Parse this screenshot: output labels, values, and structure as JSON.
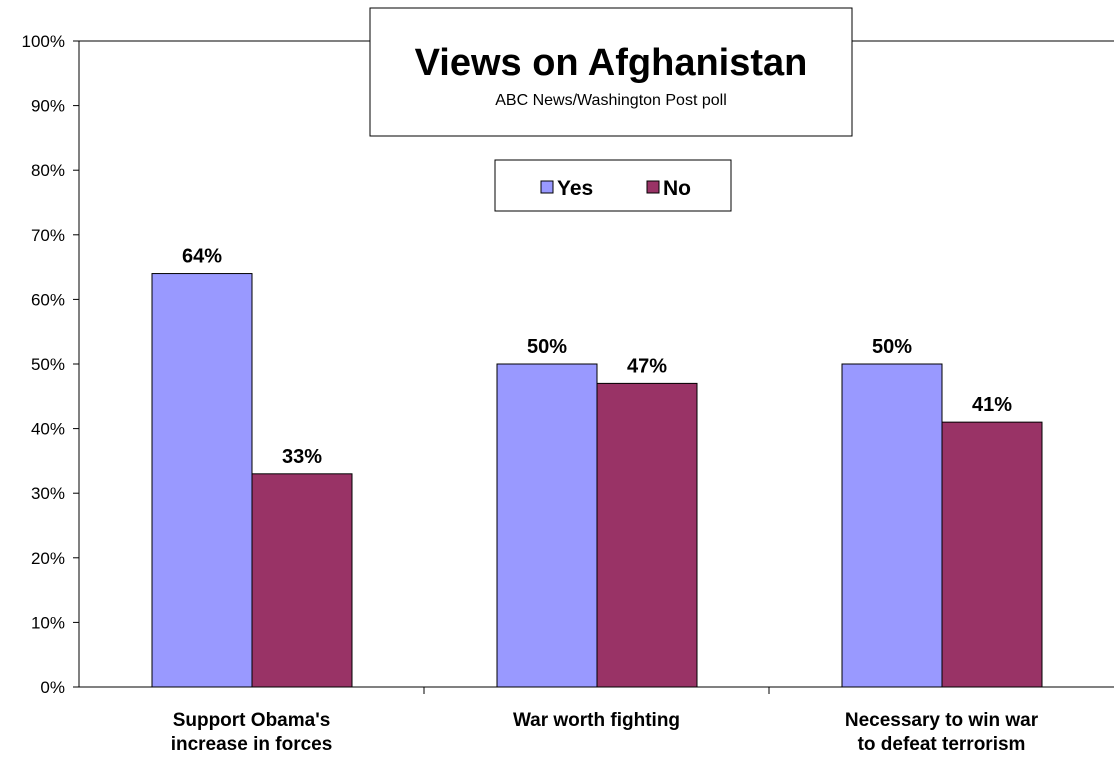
{
  "chart_data": {
    "type": "bar",
    "title": "Views on Afghanistan",
    "subtitle": "ABC News/Washington Post poll",
    "xlabel": "",
    "ylabel": "",
    "ylim": [
      0,
      100
    ],
    "y_ticks": [
      "0%",
      "10%",
      "20%",
      "30%",
      "40%",
      "50%",
      "60%",
      "70%",
      "80%",
      "90%",
      "100%"
    ],
    "categories": [
      [
        "Support Obama's",
        "increase in forces"
      ],
      [
        "War worth fighting"
      ],
      [
        "Necessary to win war",
        "to defeat terrorism"
      ]
    ],
    "series": [
      {
        "name": "Yes",
        "color": "#9999ff",
        "values": [
          64,
          50,
          50
        ],
        "labels": [
          "64%",
          "50%",
          "50%"
        ]
      },
      {
        "name": "No",
        "color": "#993366",
        "values": [
          33,
          47,
          41
        ],
        "labels": [
          "33%",
          "47%",
          "41%"
        ]
      }
    ],
    "grid": false,
    "legend_placement": "top-center"
  }
}
